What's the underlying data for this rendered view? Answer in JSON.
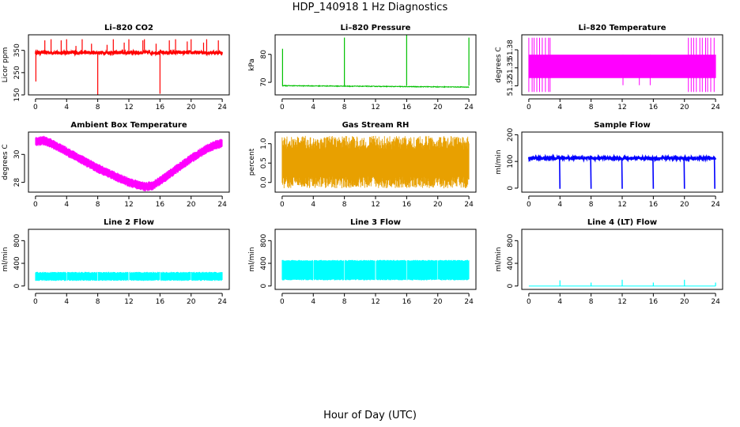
{
  "title": "HDP_140918  1 Hz Diagnostics",
  "xlabel": "Hour of Day (UTC)",
  "chart_data": [
    {
      "type": "line",
      "title": "Li–820 CO2",
      "ylabel": "Licor ppm",
      "color": "#ff0000",
      "xlim": [
        0,
        24
      ],
      "ylim": [
        150,
        420
      ],
      "xticks": [
        0,
        4,
        8,
        12,
        16,
        20,
        24
      ],
      "xtick_labels": [
        "0",
        "4",
        "8",
        "12",
        "16",
        "20",
        "24"
      ],
      "yticks": [
        150,
        250,
        350
      ],
      "ytick_labels": [
        "150",
        "250",
        "350"
      ],
      "baseline": 340,
      "noise": 8,
      "spikes": [
        {
          "x": 0.05,
          "y": 210
        },
        {
          "x": 1.2,
          "y": 395
        },
        {
          "x": 2.0,
          "y": 400
        },
        {
          "x": 3.3,
          "y": 395
        },
        {
          "x": 4.0,
          "y": 400
        },
        {
          "x": 5.2,
          "y": 370
        },
        {
          "x": 6.0,
          "y": 400
        },
        {
          "x": 7.2,
          "y": 380
        },
        {
          "x": 8.0,
          "y": 150
        },
        {
          "x": 9.2,
          "y": 375
        },
        {
          "x": 10.0,
          "y": 400
        },
        {
          "x": 11.4,
          "y": 385
        },
        {
          "x": 12.0,
          "y": 400
        },
        {
          "x": 13.8,
          "y": 395
        },
        {
          "x": 14.0,
          "y": 400
        },
        {
          "x": 15.5,
          "y": 380
        },
        {
          "x": 16.0,
          "y": 155
        },
        {
          "x": 17.2,
          "y": 395
        },
        {
          "x": 18.0,
          "y": 400
        },
        {
          "x": 19.5,
          "y": 390
        },
        {
          "x": 20.0,
          "y": 400
        },
        {
          "x": 21.6,
          "y": 385
        },
        {
          "x": 22.0,
          "y": 400
        },
        {
          "x": 23.5,
          "y": 395
        }
      ]
    },
    {
      "type": "line",
      "title": "Li–820 Pressure",
      "ylabel": "kPa",
      "color": "#00c000",
      "xlim": [
        0,
        24
      ],
      "ylim": [
        65.5,
        87
      ],
      "xticks": [
        0,
        4,
        8,
        12,
        16,
        20,
        24
      ],
      "xtick_labels": [
        "0",
        "4",
        "8",
        "12",
        "16",
        "20",
        "24"
      ],
      "yticks": [
        70,
        80
      ],
      "ytick_labels": [
        "70",
        "80"
      ],
      "baseline_start": 68.8,
      "baseline_end": 68.3,
      "spikes": [
        {
          "x": 0.05,
          "y": 82
        },
        {
          "x": 8.0,
          "y": 86
        },
        {
          "x": 16.0,
          "y": 87
        },
        {
          "x": 24.0,
          "y": 86
        }
      ]
    },
    {
      "type": "line",
      "title": "Li–820 Temperature",
      "ylabel": "degrees C",
      "color": "#ff00ff",
      "xlim": [
        0,
        24
      ],
      "ylim": [
        51.305,
        51.405
      ],
      "xticks": [
        0,
        4,
        8,
        12,
        16,
        20,
        24
      ],
      "xtick_labels": [
        "0",
        "4",
        "8",
        "12",
        "16",
        "20",
        "24"
      ],
      "yticks": [
        51.32,
        51.35,
        51.38
      ],
      "ytick_labels": [
        "51.32",
        "51.35",
        "51.38"
      ],
      "band_low": 51.333,
      "band_high": 51.372,
      "spike_low": 51.31,
      "spike_high": 51.4,
      "spike_ranges": [
        [
          0,
          2.8
        ],
        [
          20.5,
          24
        ]
      ]
    },
    {
      "type": "line",
      "title": "Ambient Box Temperature",
      "ylabel": "degrees C",
      "color": "#ff00ff",
      "xlim": [
        0,
        24
      ],
      "ylim": [
        27.3,
        31.6
      ],
      "xticks": [
        0,
        4,
        8,
        12,
        16,
        20,
        24
      ],
      "xtick_labels": [
        "0",
        "4",
        "8",
        "12",
        "16",
        "20",
        "24"
      ],
      "yticks": [
        28,
        30
      ],
      "ytick_labels": [
        "28",
        "30"
      ],
      "x": [
        0,
        1,
        2,
        4,
        6,
        8,
        10,
        12,
        14,
        15,
        16,
        18,
        20,
        22,
        23,
        24
      ],
      "y": [
        30.9,
        31.0,
        30.8,
        30.2,
        29.6,
        29.0,
        28.5,
        28.0,
        27.7,
        27.75,
        28.1,
        28.9,
        29.7,
        30.4,
        30.65,
        30.8
      ],
      "band": 0.45
    },
    {
      "type": "line",
      "title": "Gas Stream RH",
      "ylabel": "percent",
      "color": "#e8a000",
      "xlim": [
        0,
        24
      ],
      "ylim": [
        -0.25,
        1.3
      ],
      "xticks": [
        0,
        4,
        8,
        12,
        16,
        20,
        24
      ],
      "xtick_labels": [
        "0",
        "4",
        "8",
        "12",
        "16",
        "20",
        "24"
      ],
      "yticks": [
        0,
        0.5,
        1
      ],
      "ytick_labels": [
        "0.0",
        "0.5",
        "1.0"
      ],
      "center": 0.5,
      "band_low": -0.15,
      "band_high": 1.2
    },
    {
      "type": "line",
      "title": "Sample Flow",
      "ylabel": "ml/min",
      "color": "#0000ff",
      "xlim": [
        0,
        24
      ],
      "ylim": [
        -15,
        210
      ],
      "xticks": [
        0,
        4,
        8,
        12,
        16,
        20,
        24
      ],
      "xtick_labels": [
        "0",
        "4",
        "8",
        "12",
        "16",
        "20",
        "24"
      ],
      "yticks": [
        0,
        100,
        200
      ],
      "ytick_labels": [
        "0",
        "100",
        "200"
      ],
      "baseline": 112,
      "noise": 5,
      "dips": [
        {
          "x": 4,
          "y": 0
        },
        {
          "x": 8,
          "y": 0
        },
        {
          "x": 12,
          "y": 0
        },
        {
          "x": 16,
          "y": 0
        },
        {
          "x": 20,
          "y": 0
        },
        {
          "x": 24,
          "y": 0
        }
      ]
    },
    {
      "type": "line",
      "title": "Line 2 Flow",
      "ylabel": "ml/min",
      "color": "#00ffff",
      "xlim": [
        0,
        24
      ],
      "ylim": [
        -60,
        1000
      ],
      "xticks": [
        0,
        4,
        8,
        12,
        16,
        20,
        24
      ],
      "xtick_labels": [
        "0",
        "4",
        "8",
        "12",
        "16",
        "20",
        "24"
      ],
      "yticks": [
        0,
        400,
        800
      ],
      "ytick_labels": [
        "0",
        "400",
        "800"
      ],
      "band_low": 90,
      "band_high": 250,
      "gaps": [
        4,
        8,
        12,
        16,
        20
      ]
    },
    {
      "type": "line",
      "title": "Line 3 Flow",
      "ylabel": "ml/min",
      "color": "#00ffff",
      "xlim": [
        0,
        24
      ],
      "ylim": [
        -60,
        1000
      ],
      "xticks": [
        0,
        4,
        8,
        12,
        16,
        20,
        24
      ],
      "xtick_labels": [
        "0",
        "4",
        "8",
        "12",
        "16",
        "20",
        "24"
      ],
      "yticks": [
        0,
        400,
        800
      ],
      "ytick_labels": [
        "0",
        "400",
        "800"
      ],
      "band_low": 100,
      "band_high": 460,
      "gaps": [
        4,
        8,
        12,
        16,
        20
      ]
    },
    {
      "type": "line",
      "title": "Line 4 (LT) Flow",
      "ylabel": "ml/min",
      "color": "#00ffff",
      "xlim": [
        0,
        24
      ],
      "ylim": [
        -60,
        1000
      ],
      "xticks": [
        0,
        4,
        8,
        12,
        16,
        20,
        24
      ],
      "xtick_labels": [
        "0",
        "4",
        "8",
        "12",
        "16",
        "20",
        "24"
      ],
      "yticks": [
        0,
        400,
        800
      ],
      "ytick_labels": [
        "0",
        "400",
        "800"
      ],
      "baseline": 0,
      "spikes": [
        {
          "x": 4,
          "y": 100
        },
        {
          "x": 8,
          "y": 60
        },
        {
          "x": 12,
          "y": 110
        },
        {
          "x": 16,
          "y": 60
        },
        {
          "x": 20,
          "y": 110
        },
        {
          "x": 24,
          "y": 60
        }
      ]
    }
  ]
}
